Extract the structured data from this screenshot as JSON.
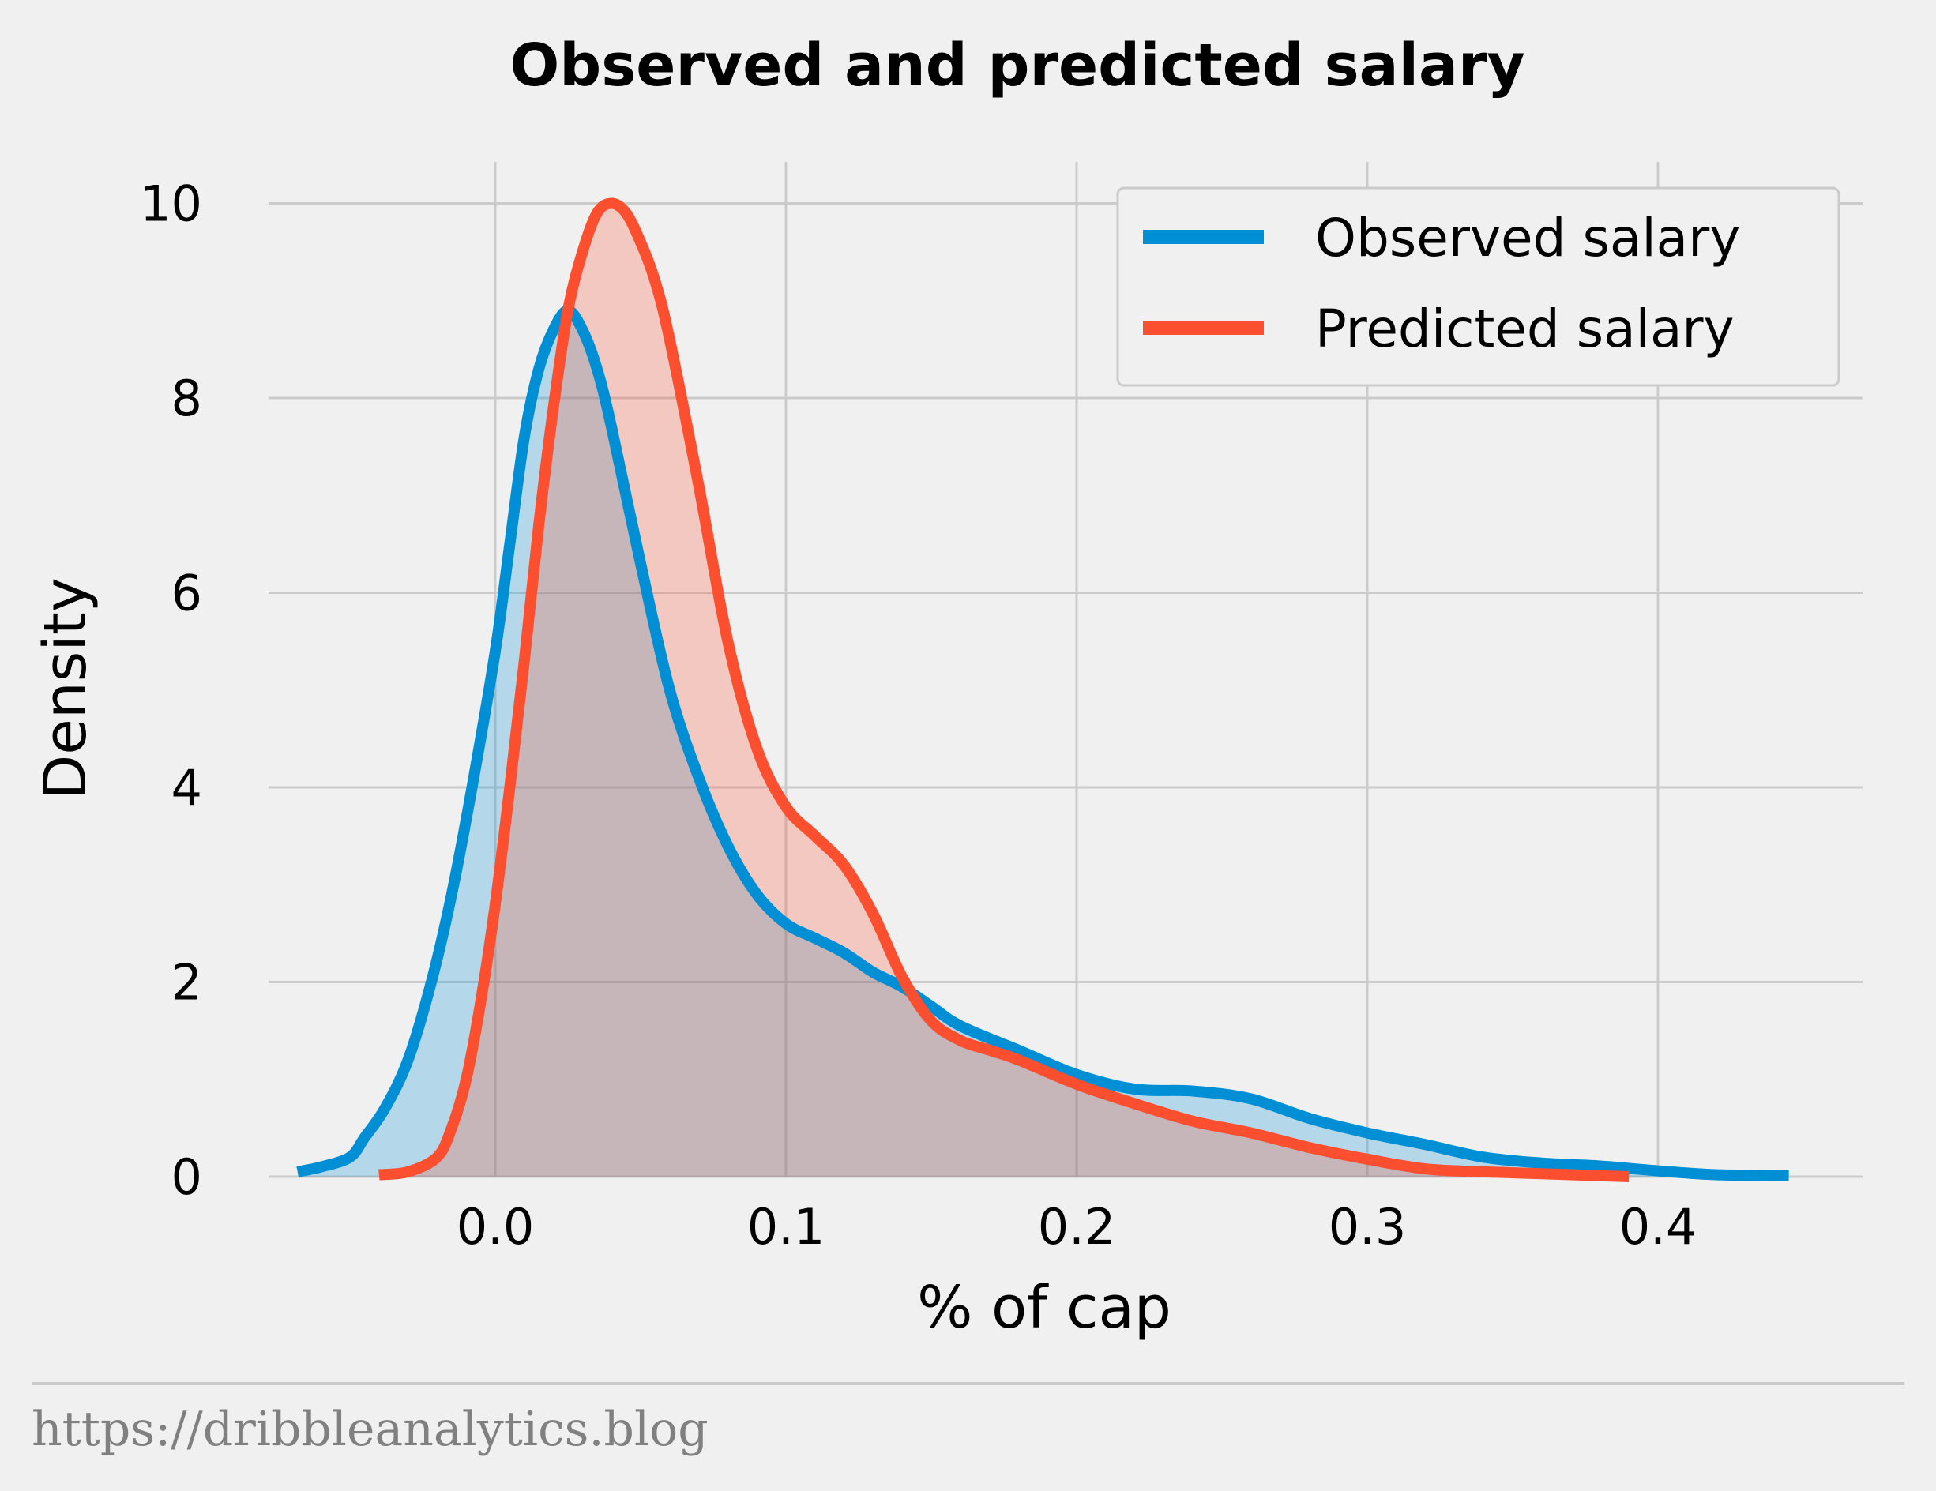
{
  "chart_data": {
    "type": "area",
    "title": "Observed and predicted salary",
    "xlabel": "% of cap",
    "ylabel": "Density",
    "xlim": [
      -0.085,
      0.47
    ],
    "ylim": [
      0,
      10.5
    ],
    "xticks": [
      "0.0",
      "0.1",
      "0.2",
      "0.3",
      "0.4"
    ],
    "yticks": [
      "0",
      "2",
      "4",
      "6",
      "8",
      "10"
    ],
    "grid": true,
    "legend_position": "top-right",
    "series": [
      {
        "name": "Observed salary",
        "color": "#008fd5",
        "points": [
          [
            -0.068,
            0.05
          ],
          [
            -0.06,
            0.1
          ],
          [
            -0.05,
            0.2
          ],
          [
            -0.045,
            0.4
          ],
          [
            -0.038,
            0.7
          ],
          [
            -0.03,
            1.2
          ],
          [
            -0.022,
            2.0
          ],
          [
            -0.015,
            2.9
          ],
          [
            -0.008,
            4.0
          ],
          [
            0.0,
            5.4
          ],
          [
            0.005,
            6.5
          ],
          [
            0.01,
            7.6
          ],
          [
            0.015,
            8.3
          ],
          [
            0.02,
            8.7
          ],
          [
            0.025,
            8.9
          ],
          [
            0.03,
            8.7
          ],
          [
            0.035,
            8.3
          ],
          [
            0.04,
            7.7
          ],
          [
            0.05,
            6.3
          ],
          [
            0.06,
            5.0
          ],
          [
            0.07,
            4.1
          ],
          [
            0.08,
            3.4
          ],
          [
            0.09,
            2.9
          ],
          [
            0.1,
            2.6
          ],
          [
            0.11,
            2.45
          ],
          [
            0.12,
            2.3
          ],
          [
            0.13,
            2.1
          ],
          [
            0.14,
            1.95
          ],
          [
            0.15,
            1.75
          ],
          [
            0.16,
            1.55
          ],
          [
            0.18,
            1.3
          ],
          [
            0.2,
            1.05
          ],
          [
            0.22,
            0.9
          ],
          [
            0.24,
            0.88
          ],
          [
            0.26,
            0.8
          ],
          [
            0.28,
            0.6
          ],
          [
            0.3,
            0.45
          ],
          [
            0.32,
            0.33
          ],
          [
            0.34,
            0.2
          ],
          [
            0.36,
            0.14
          ],
          [
            0.38,
            0.11
          ],
          [
            0.4,
            0.06
          ],
          [
            0.42,
            0.02
          ],
          [
            0.445,
            0.01
          ]
        ]
      },
      {
        "name": "Predicted salary",
        "color": "#fc4f30",
        "points": [
          [
            -0.04,
            0.02
          ],
          [
            -0.03,
            0.05
          ],
          [
            -0.02,
            0.2
          ],
          [
            -0.015,
            0.5
          ],
          [
            -0.01,
            1.0
          ],
          [
            -0.005,
            1.8
          ],
          [
            0.0,
            2.8
          ],
          [
            0.005,
            4.0
          ],
          [
            0.01,
            5.3
          ],
          [
            0.015,
            6.7
          ],
          [
            0.02,
            7.9
          ],
          [
            0.025,
            8.9
          ],
          [
            0.03,
            9.5
          ],
          [
            0.035,
            9.9
          ],
          [
            0.04,
            10.0
          ],
          [
            0.045,
            9.9
          ],
          [
            0.05,
            9.6
          ],
          [
            0.055,
            9.2
          ],
          [
            0.06,
            8.6
          ],
          [
            0.07,
            7.1
          ],
          [
            0.08,
            5.5
          ],
          [
            0.09,
            4.4
          ],
          [
            0.1,
            3.8
          ],
          [
            0.11,
            3.5
          ],
          [
            0.12,
            3.2
          ],
          [
            0.13,
            2.7
          ],
          [
            0.14,
            2.05
          ],
          [
            0.15,
            1.6
          ],
          [
            0.16,
            1.4
          ],
          [
            0.17,
            1.3
          ],
          [
            0.18,
            1.2
          ],
          [
            0.2,
            0.95
          ],
          [
            0.22,
            0.75
          ],
          [
            0.24,
            0.57
          ],
          [
            0.26,
            0.45
          ],
          [
            0.28,
            0.3
          ],
          [
            0.3,
            0.18
          ],
          [
            0.32,
            0.08
          ],
          [
            0.34,
            0.05
          ],
          [
            0.36,
            0.03
          ],
          [
            0.38,
            0.01
          ],
          [
            0.39,
            0.0
          ]
        ]
      }
    ]
  },
  "footer": {
    "url": "https://dribbleanalytics.blog"
  }
}
